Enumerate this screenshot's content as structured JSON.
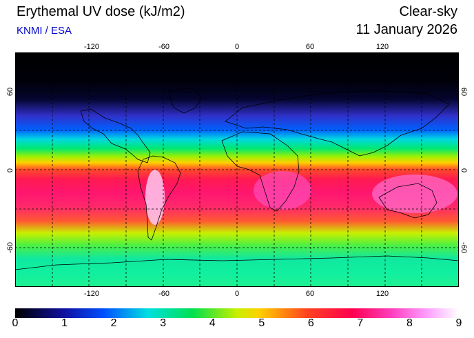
{
  "header": {
    "title": "Erythemal UV dose (kJ/m2)",
    "subtitle": "KNMI / ESA",
    "mode": "Clear-sky",
    "date": "11 January 2026"
  },
  "colors": {
    "subtitle": "#0000cc"
  },
  "map": {
    "longitudes": [
      -120,
      -60,
      0,
      60,
      120
    ],
    "latitudes": [
      60,
      0,
      -60
    ],
    "lon_range": [
      -180,
      180
    ],
    "lat_range": [
      -90,
      90
    ],
    "grid": "dashed, every 30 degrees"
  },
  "legend": {
    "ticks": [
      "0",
      "1",
      "2",
      "3",
      "4",
      "5",
      "6",
      "7",
      "8",
      "9"
    ],
    "range": [
      0,
      9
    ]
  },
  "chart_data": {
    "type": "heatmap",
    "title": "Erythemal UV dose (kJ/m2)",
    "x": "longitude",
    "y": "latitude",
    "colorbar_range": [
      0,
      9
    ]
  }
}
